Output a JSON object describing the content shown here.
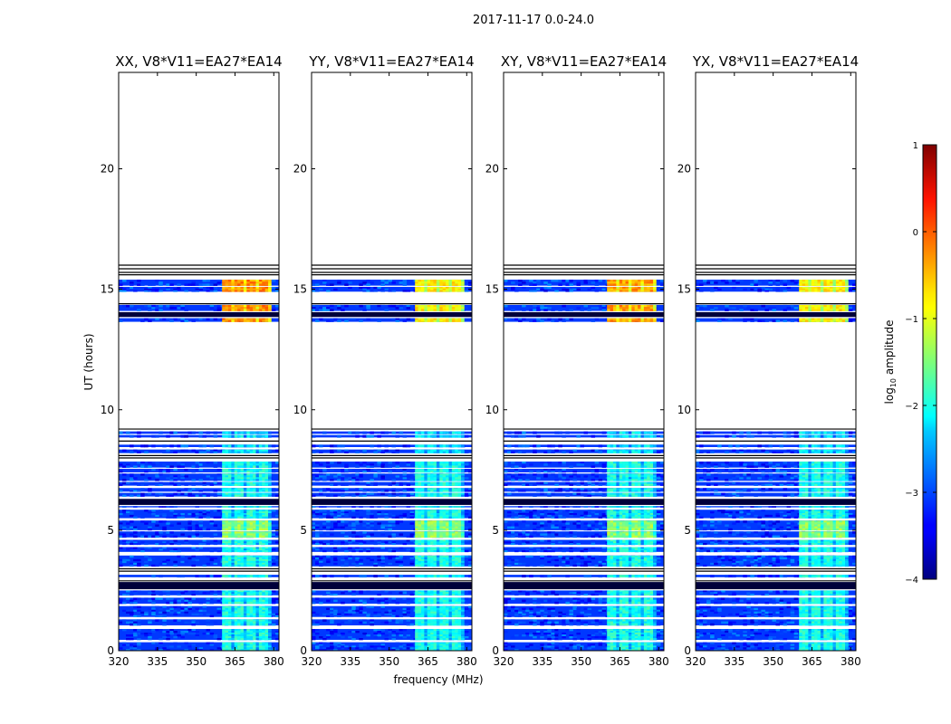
{
  "chart_data": {
    "type": "heatmap",
    "suptitle": "2017-11-17 0.0-24.0",
    "xlabel": "frequency (MHz)",
    "ylabel": "UT (hours)",
    "xlim": [
      320,
      382
    ],
    "ylim": [
      0,
      24
    ],
    "xticks": [
      320,
      335,
      350,
      365,
      380
    ],
    "yticks": [
      0,
      5,
      10,
      15,
      20
    ],
    "panels": [
      {
        "title": "XX, V8*V11=EA27*EA14",
        "band_level": 1.0,
        "peak": -0.3
      },
      {
        "title": "YY, V8*V11=EA27*EA14",
        "band_level": 0.85,
        "peak": -0.8
      },
      {
        "title": "XY, V8*V11=EA27*EA14",
        "band_level": 1.0,
        "peak": -0.4
      },
      {
        "title": "YX, V8*V11=EA27*EA14",
        "band_level": 0.85,
        "peak": -0.8
      }
    ],
    "rfi_band_mhz": [
      360,
      379
    ],
    "background_log_amplitude": -3.1,
    "data_segments_ut_hours": [
      [
        0.0,
        0.35
      ],
      [
        0.45,
        0.9
      ],
      [
        1.05,
        1.3
      ],
      [
        1.4,
        1.85
      ],
      [
        1.95,
        2.2
      ],
      [
        2.3,
        2.5
      ],
      [
        3.05,
        3.15
      ],
      [
        3.5,
        3.95
      ],
      [
        4.1,
        4.3
      ],
      [
        4.4,
        4.6
      ],
      [
        4.7,
        4.95
      ],
      [
        5.0,
        5.4
      ],
      [
        5.5,
        5.85
      ],
      [
        5.95,
        6.0
      ],
      [
        6.4,
        6.55
      ],
      [
        6.6,
        6.75
      ],
      [
        6.85,
        7.0
      ],
      [
        7.05,
        7.35
      ],
      [
        7.4,
        7.55
      ],
      [
        7.6,
        7.85
      ],
      [
        8.2,
        8.35
      ],
      [
        8.45,
        8.55
      ],
      [
        8.85,
        8.95
      ],
      [
        9.0,
        9.1
      ],
      [
        13.65,
        13.8
      ],
      [
        14.1,
        14.35
      ],
      [
        14.9,
        15.1
      ],
      [
        15.15,
        15.4
      ]
    ],
    "dark_blocks_ut_hours": [
      [
        2.55,
        2.85
      ],
      [
        6.05,
        6.3
      ],
      [
        13.85,
        14.05
      ]
    ],
    "colorbar": {
      "label": "log10 amplitude",
      "range": [
        -4,
        1
      ],
      "ticks": [
        "1",
        "0",
        "−1",
        "−2",
        "−3",
        "−4"
      ],
      "colormap": "jet"
    }
  }
}
